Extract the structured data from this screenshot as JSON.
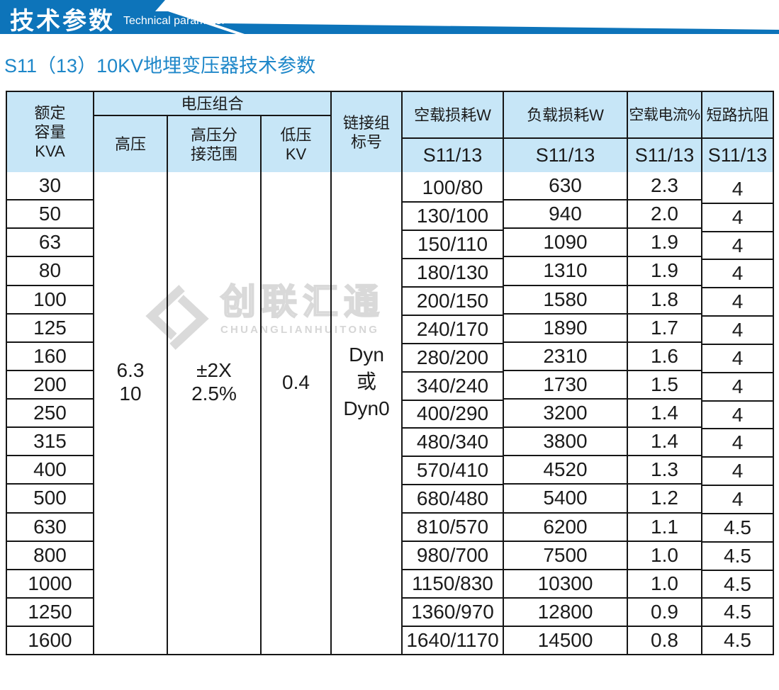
{
  "banner": {
    "title_cn": "技术参数",
    "title_en": "Technical parameter"
  },
  "subtitle": "S11（13）10KV地埋变压器技术参数",
  "watermark": {
    "cn": "创联汇通",
    "en": "CHUANGLIANHUITONG"
  },
  "colors": {
    "banner_blue": "#0d74ba",
    "subtitle_blue": "#1e87c9",
    "table_header_bg": "#c7e6f7",
    "table_border": "#161616",
    "watermark_gray": "#d9d9d9"
  },
  "table": {
    "header": {
      "rated_capacity": "额定\n容量\nKVA",
      "voltage_combination": "电压组合",
      "high_voltage": "高压",
      "tap_range": "高压分\n接范围",
      "low_voltage": "低压\nKV",
      "vector_group": "链接组\n标号",
      "no_load_loss": "空载损耗W",
      "load_loss": "负载损耗W",
      "no_load_current": "空载电流%",
      "impedance": "短路抗阻",
      "model": "S11/13"
    },
    "merged_cells": {
      "high_voltage": "6.3\n10",
      "tap_range": "±2X\n2.5%",
      "low_voltage": "0.4",
      "vector_group": "Dyn\n或\nDyn0"
    },
    "rows": {
      "capacity_kva": [
        "30",
        "50",
        "63",
        "80",
        "100",
        "125",
        "160",
        "200",
        "250",
        "315",
        "400",
        "500",
        "630",
        "800",
        "1000",
        "1250",
        "1600"
      ],
      "no_load_loss_w": [
        "100/80",
        "130/100",
        "150/110",
        "180/130",
        "200/150",
        "240/170",
        "280/200",
        "340/240",
        "400/290",
        "480/340",
        "570/410",
        "680/480",
        "810/570",
        "980/700",
        "1150/830",
        "1360/970",
        "1640/1170"
      ],
      "load_loss_w": [
        "630",
        "940",
        "1090",
        "1310",
        "1580",
        "1890",
        "2310",
        "1730",
        "3200",
        "3800",
        "4520",
        "5400",
        "6200",
        "7500",
        "10300",
        "12800",
        "14500"
      ],
      "no_load_current_pct": [
        "2.3",
        "2.0",
        "1.9",
        "1.9",
        "1.8",
        "1.7",
        "1.6",
        "1.5",
        "1.4",
        "1.4",
        "1.3",
        "1.2",
        "1.1",
        "1.0",
        "1.0",
        "0.9",
        "0.8"
      ],
      "impedance_pct": [
        "4",
        "4",
        "4",
        "4",
        "4",
        "4",
        "4",
        "4",
        "4",
        "4",
        "4",
        "4",
        "4.5",
        "4.5",
        "4.5",
        "4.5",
        "4.5"
      ]
    }
  }
}
